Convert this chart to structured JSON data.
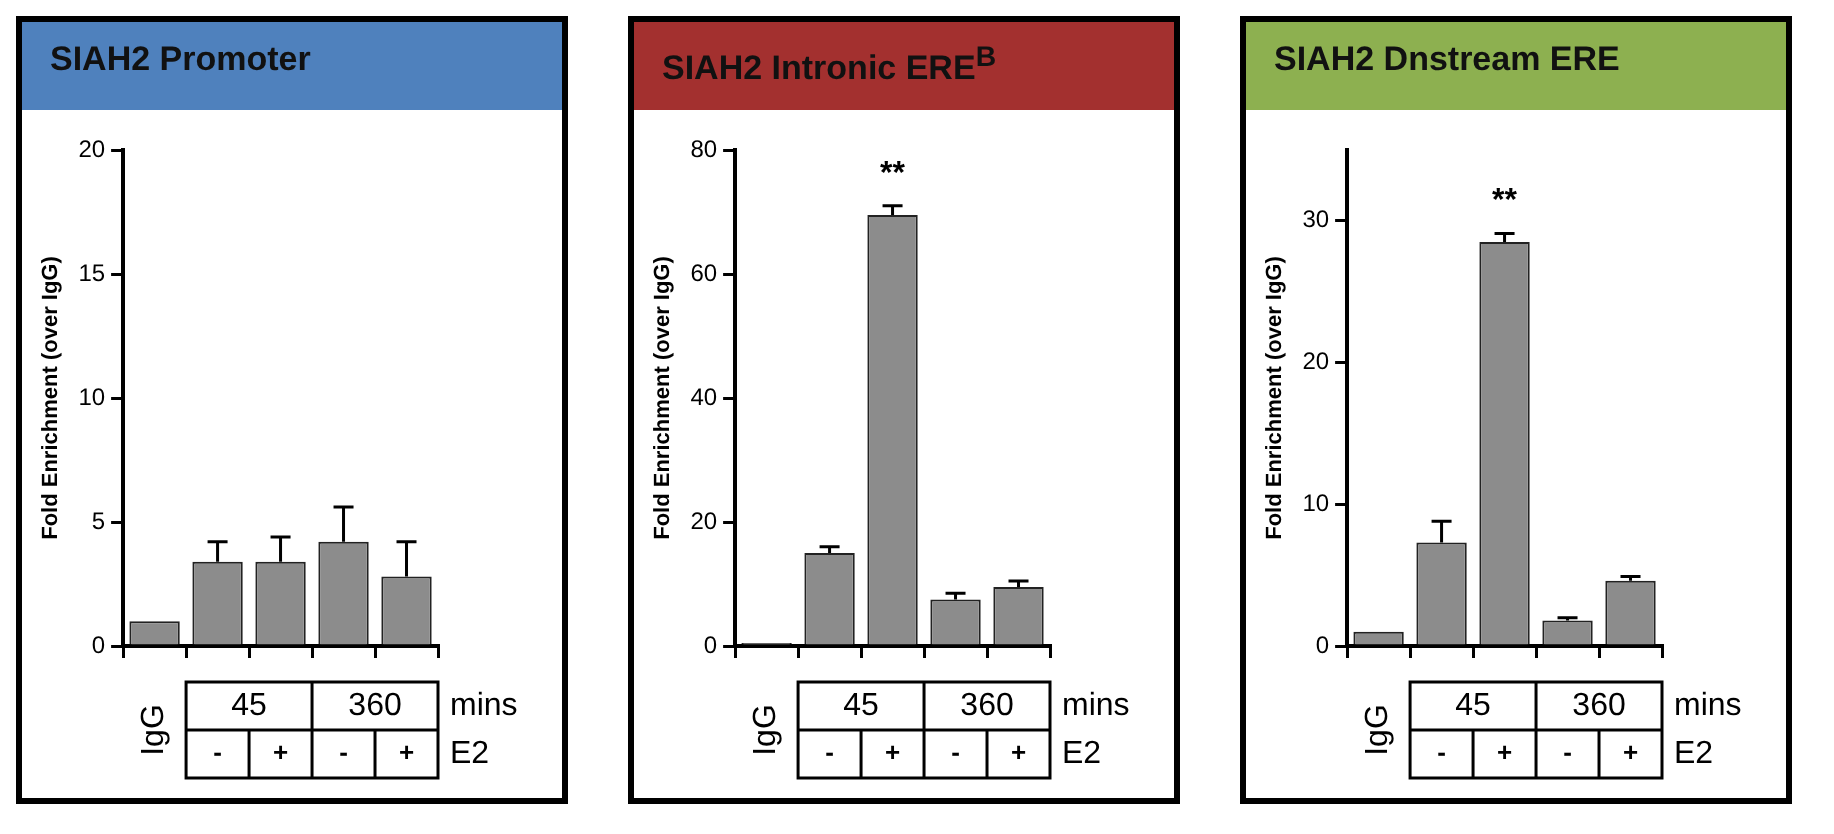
{
  "chart_data": [
    {
      "type": "bar",
      "title": "SIAH2 Promoter",
      "ylabel": "Fold Enrichment (over IgG)",
      "categories": [
        "IgG",
        "-",
        "+",
        "-",
        "+"
      ],
      "values": [
        1.0,
        3.4,
        3.4,
        4.2,
        2.8
      ],
      "errors": [
        null,
        [
          3.4,
          4.2
        ],
        [
          3.4,
          4.4
        ],
        [
          4.2,
          5.6
        ],
        [
          2.8,
          4.2
        ]
      ],
      "color": "#8c8c8c",
      "ylim": [
        0,
        20
      ],
      "yticks": [
        0,
        5,
        10,
        15,
        20
      ],
      "grid": false,
      "legend": false,
      "annotations": [
        "45",
        "360",
        "mins",
        "E2"
      ]
    },
    {
      "type": "bar",
      "title": "SIAH2 Intronic ERE$^{B}$",
      "ylabel": "Fold Enrichment (over IgG)",
      "categories": [
        "IgG",
        "-",
        "+",
        "-",
        "+"
      ],
      "values": [
        0.5,
        15,
        69.5,
        7.5,
        9.5
      ],
      "errors": [
        null,
        [
          15,
          16
        ],
        [
          69.5,
          71
        ],
        [
          7.5,
          8.5
        ],
        [
          9.5,
          10.5
        ]
      ],
      "color": "#8c8c8c",
      "ylim": [
        0,
        80
      ],
      "yticks": [
        0,
        20,
        40,
        60,
        80
      ],
      "grid": false,
      "legend": false,
      "value_labels": [
        null,
        null,
        "**",
        null,
        null
      ],
      "annotations": [
        "45",
        "360",
        "mins",
        "E2"
      ]
    },
    {
      "type": "bar",
      "title": "SIAH2 Dnstream ERE",
      "ylabel": "Fold Enrichment (over IgG)",
      "categories": [
        "IgG",
        "-",
        "+",
        "-",
        "+"
      ],
      "values": [
        1.0,
        7.3,
        28.5,
        1.8,
        4.6
      ],
      "errors": [
        null,
        [
          7.3,
          8.8
        ],
        [
          28.5,
          29.1
        ],
        [
          1.8,
          2.0
        ],
        [
          4.6,
          4.9
        ]
      ],
      "color": "#8c8c8c",
      "ylim": [
        0,
        35
      ],
      "yticks": [
        0,
        10,
        20,
        30
      ],
      "grid": false,
      "legend": false,
      "value_labels": [
        null,
        null,
        "**",
        null,
        null
      ],
      "annotations": [
        "45",
        "360",
        "mins",
        "E2"
      ]
    }
  ]
}
